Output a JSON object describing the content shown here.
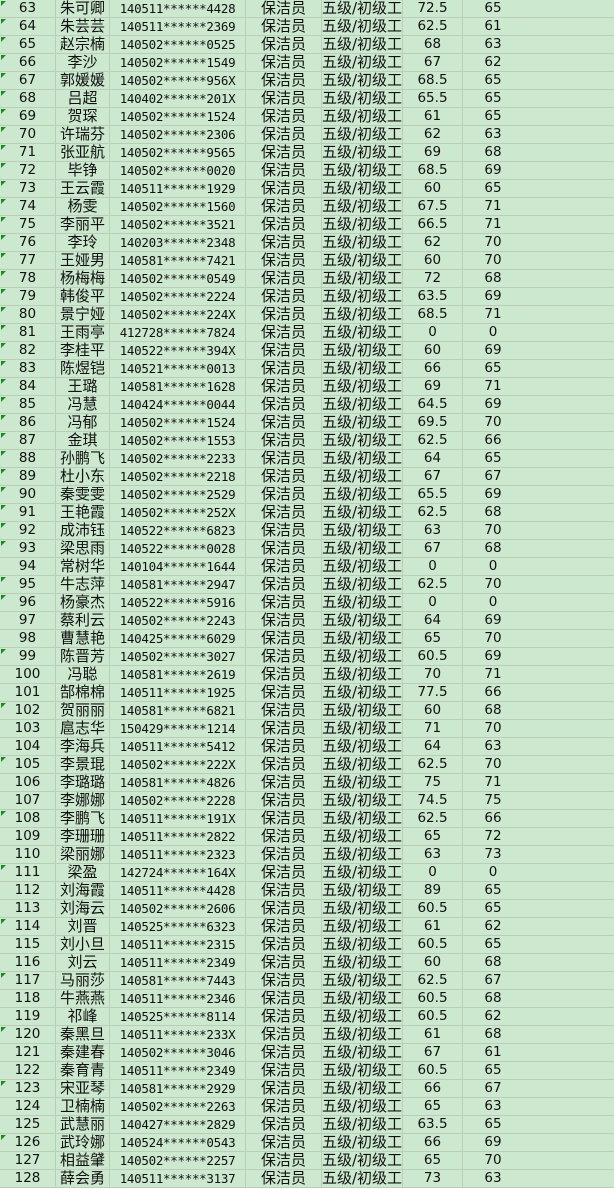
{
  "colors": {
    "background": "#cce8cf",
    "gridline": "#b9cdb9",
    "error_flag": "#1f8a1f"
  },
  "rows": [
    {
      "no": "63",
      "name": "朱可卿",
      "id": "140511******4428",
      "job": "保洁员",
      "level": "五级/初级工",
      "s1": "72.5",
      "s2": "65",
      "flag": true
    },
    {
      "no": "64",
      "name": "朱芸芸",
      "id": "140511******2369",
      "job": "保洁员",
      "level": "五级/初级工",
      "s1": "62.5",
      "s2": "61",
      "flag": true
    },
    {
      "no": "65",
      "name": "赵宗楠",
      "id": "140502******0525",
      "job": "保洁员",
      "level": "五级/初级工",
      "s1": "68",
      "s2": "63",
      "flag": true
    },
    {
      "no": "66",
      "name": "李沙",
      "id": "140502******1549",
      "job": "保洁员",
      "level": "五级/初级工",
      "s1": "67",
      "s2": "62",
      "flag": true
    },
    {
      "no": "67",
      "name": "郭媛媛",
      "id": "140502******956X",
      "job": "保洁员",
      "level": "五级/初级工",
      "s1": "68.5",
      "s2": "65",
      "flag": true
    },
    {
      "no": "68",
      "name": "吕超",
      "id": "140402******201X",
      "job": "保洁员",
      "level": "五级/初级工",
      "s1": "65.5",
      "s2": "65",
      "flag": true
    },
    {
      "no": "69",
      "name": "贺琛",
      "id": "140502******1524",
      "job": "保洁员",
      "level": "五级/初级工",
      "s1": "61",
      "s2": "65",
      "flag": true
    },
    {
      "no": "70",
      "name": "许瑞芬",
      "id": "140502******2306",
      "job": "保洁员",
      "level": "五级/初级工",
      "s1": "62",
      "s2": "63",
      "flag": true
    },
    {
      "no": "71",
      "name": "张亚航",
      "id": "140502******9565",
      "job": "保洁员",
      "level": "五级/初级工",
      "s1": "69",
      "s2": "68",
      "flag": true
    },
    {
      "no": "72",
      "name": "毕铮",
      "id": "140502******0020",
      "job": "保洁员",
      "level": "五级/初级工",
      "s1": "68.5",
      "s2": "69",
      "flag": true
    },
    {
      "no": "73",
      "name": "王云霞",
      "id": "140511******1929",
      "job": "保洁员",
      "level": "五级/初级工",
      "s1": "60",
      "s2": "65",
      "flag": true
    },
    {
      "no": "74",
      "name": "杨雯",
      "id": "140502******1560",
      "job": "保洁员",
      "level": "五级/初级工",
      "s1": "67.5",
      "s2": "71",
      "flag": true
    },
    {
      "no": "75",
      "name": "李丽平",
      "id": "140502******3521",
      "job": "保洁员",
      "level": "五级/初级工",
      "s1": "66.5",
      "s2": "71",
      "flag": true
    },
    {
      "no": "76",
      "name": "李玲",
      "id": "140203******2348",
      "job": "保洁员",
      "level": "五级/初级工",
      "s1": "62",
      "s2": "70",
      "flag": true
    },
    {
      "no": "77",
      "name": "王娅男",
      "id": "140581******7421",
      "job": "保洁员",
      "level": "五级/初级工",
      "s1": "60",
      "s2": "70",
      "flag": true
    },
    {
      "no": "78",
      "name": "杨梅梅",
      "id": "140502******0549",
      "job": "保洁员",
      "level": "五级/初级工",
      "s1": "72",
      "s2": "68",
      "flag": true
    },
    {
      "no": "79",
      "name": "韩俊平",
      "id": "140502******2224",
      "job": "保洁员",
      "level": "五级/初级工",
      "s1": "63.5",
      "s2": "69",
      "flag": true
    },
    {
      "no": "80",
      "name": "景宁娅",
      "id": "140502******224X",
      "job": "保洁员",
      "level": "五级/初级工",
      "s1": "68.5",
      "s2": "71",
      "flag": true
    },
    {
      "no": "81",
      "name": "王雨亭",
      "id": "412728******7824",
      "job": "保洁员",
      "level": "五级/初级工",
      "s1": "0",
      "s2": "0",
      "flag": true
    },
    {
      "no": "82",
      "name": "李桂平",
      "id": "140522******394X",
      "job": "保洁员",
      "level": "五级/初级工",
      "s1": "60",
      "s2": "69",
      "flag": true
    },
    {
      "no": "83",
      "name": "陈煜铠",
      "id": "140521******0013",
      "job": "保洁员",
      "level": "五级/初级工",
      "s1": "66",
      "s2": "65",
      "flag": true
    },
    {
      "no": "84",
      "name": "王璐",
      "id": "140581******1628",
      "job": "保洁员",
      "level": "五级/初级工",
      "s1": "69",
      "s2": "71",
      "flag": true
    },
    {
      "no": "85",
      "name": "冯慧",
      "id": "140424******0044",
      "job": "保洁员",
      "level": "五级/初级工",
      "s1": "64.5",
      "s2": "69",
      "flag": true
    },
    {
      "no": "86",
      "name": "冯郁",
      "id": "140502******1524",
      "job": "保洁员",
      "level": "五级/初级工",
      "s1": "69.5",
      "s2": "70",
      "flag": true
    },
    {
      "no": "87",
      "name": "金琪",
      "id": "140502******1553",
      "job": "保洁员",
      "level": "五级/初级工",
      "s1": "62.5",
      "s2": "66",
      "flag": true
    },
    {
      "no": "88",
      "name": "孙鹏飞",
      "id": "140502******2233",
      "job": "保洁员",
      "level": "五级/初级工",
      "s1": "64",
      "s2": "65",
      "flag": true
    },
    {
      "no": "89",
      "name": "杜小东",
      "id": "140502******2218",
      "job": "保洁员",
      "level": "五级/初级工",
      "s1": "67",
      "s2": "67",
      "flag": true
    },
    {
      "no": "90",
      "name": "秦雯雯",
      "id": "140502******2529",
      "job": "保洁员",
      "level": "五级/初级工",
      "s1": "65.5",
      "s2": "69",
      "flag": true
    },
    {
      "no": "91",
      "name": "王艳霞",
      "id": "140502******252X",
      "job": "保洁员",
      "level": "五级/初级工",
      "s1": "62.5",
      "s2": "68",
      "flag": true
    },
    {
      "no": "92",
      "name": "成沛钰",
      "id": "140522******6823",
      "job": "保洁员",
      "level": "五级/初级工",
      "s1": "63",
      "s2": "70",
      "flag": true
    },
    {
      "no": "93",
      "name": "梁思雨",
      "id": "140522******0028",
      "job": "保洁员",
      "level": "五级/初级工",
      "s1": "67",
      "s2": "68",
      "flag": true
    },
    {
      "no": "94",
      "name": "常树华",
      "id": "140104******1644",
      "job": "保洁员",
      "level": "五级/初级工",
      "s1": "0",
      "s2": "0",
      "flag": false
    },
    {
      "no": "95",
      "name": "牛志萍",
      "id": "140581******2947",
      "job": "保洁员",
      "level": "五级/初级工",
      "s1": "62.5",
      "s2": "70",
      "flag": true
    },
    {
      "no": "96",
      "name": "杨豪杰",
      "id": "140522******5916",
      "job": "保洁员",
      "level": "五级/初级工",
      "s1": "0",
      "s2": "0",
      "flag": true
    },
    {
      "no": "97",
      "name": "蔡利云",
      "id": "140502******2243",
      "job": "保洁员",
      "level": "五级/初级工",
      "s1": "64",
      "s2": "69",
      "flag": false
    },
    {
      "no": "98",
      "name": "曹慧艳",
      "id": "140425******6029",
      "job": "保洁员",
      "level": "五级/初级工",
      "s1": "65",
      "s2": "70",
      "flag": false
    },
    {
      "no": "99",
      "name": "陈晋芳",
      "id": "140502******3027",
      "job": "保洁员",
      "level": "五级/初级工",
      "s1": "60.5",
      "s2": "69",
      "flag": true
    },
    {
      "no": "100",
      "name": "冯聪",
      "id": "140581******2619",
      "job": "保洁员",
      "level": "五级/初级工",
      "s1": "70",
      "s2": "71",
      "flag": false
    },
    {
      "no": "101",
      "name": "郜棉棉",
      "id": "140511******1925",
      "job": "保洁员",
      "level": "五级/初级工",
      "s1": "77.5",
      "s2": "66",
      "flag": false
    },
    {
      "no": "102",
      "name": "贺丽丽",
      "id": "140581******6821",
      "job": "保洁员",
      "level": "五级/初级工",
      "s1": "60",
      "s2": "68",
      "flag": true
    },
    {
      "no": "103",
      "name": "扈志华",
      "id": "150429******1214",
      "job": "保洁员",
      "level": "五级/初级工",
      "s1": "71",
      "s2": "70",
      "flag": false
    },
    {
      "no": "104",
      "name": "李海兵",
      "id": "140511******5412",
      "job": "保洁员",
      "level": "五级/初级工",
      "s1": "64",
      "s2": "63",
      "flag": false
    },
    {
      "no": "105",
      "name": "李景琨",
      "id": "140502******222X",
      "job": "保洁员",
      "level": "五级/初级工",
      "s1": "62.5",
      "s2": "70",
      "flag": true
    },
    {
      "no": "106",
      "name": "李璐璐",
      "id": "140581******4826",
      "job": "保洁员",
      "level": "五级/初级工",
      "s1": "75",
      "s2": "71",
      "flag": false
    },
    {
      "no": "107",
      "name": "李娜娜",
      "id": "140502******2228",
      "job": "保洁员",
      "level": "五级/初级工",
      "s1": "74.5",
      "s2": "75",
      "flag": false
    },
    {
      "no": "108",
      "name": "李鹏飞",
      "id": "140511******191X",
      "job": "保洁员",
      "level": "五级/初级工",
      "s1": "62.5",
      "s2": "66",
      "flag": true
    },
    {
      "no": "109",
      "name": "李珊珊",
      "id": "140511******2822",
      "job": "保洁员",
      "level": "五级/初级工",
      "s1": "65",
      "s2": "72",
      "flag": false
    },
    {
      "no": "110",
      "name": "梁丽娜",
      "id": "140511******2323",
      "job": "保洁员",
      "level": "五级/初级工",
      "s1": "63",
      "s2": "73",
      "flag": false
    },
    {
      "no": "111",
      "name": "梁盈",
      "id": "142724******164X",
      "job": "保洁员",
      "level": "五级/初级工",
      "s1": "0",
      "s2": "0",
      "flag": true
    },
    {
      "no": "112",
      "name": "刘海霞",
      "id": "140511******4428",
      "job": "保洁员",
      "level": "五级/初级工",
      "s1": "89",
      "s2": "65",
      "flag": false
    },
    {
      "no": "113",
      "name": "刘海云",
      "id": "140502******2606",
      "job": "保洁员",
      "level": "五级/初级工",
      "s1": "60.5",
      "s2": "65",
      "flag": false
    },
    {
      "no": "114",
      "name": "刘晋",
      "id": "140525******6323",
      "job": "保洁员",
      "level": "五级/初级工",
      "s1": "61",
      "s2": "62",
      "flag": true
    },
    {
      "no": "115",
      "name": "刘小旦",
      "id": "140511******2315",
      "job": "保洁员",
      "level": "五级/初级工",
      "s1": "60.5",
      "s2": "65",
      "flag": false
    },
    {
      "no": "116",
      "name": "刘云",
      "id": "140511******2349",
      "job": "保洁员",
      "level": "五级/初级工",
      "s1": "60",
      "s2": "68",
      "flag": false
    },
    {
      "no": "117",
      "name": "马丽莎",
      "id": "140581******7443",
      "job": "保洁员",
      "level": "五级/初级工",
      "s1": "62.5",
      "s2": "67",
      "flag": true
    },
    {
      "no": "118",
      "name": "牛燕燕",
      "id": "140511******2346",
      "job": "保洁员",
      "level": "五级/初级工",
      "s1": "60.5",
      "s2": "68",
      "flag": false
    },
    {
      "no": "119",
      "name": "祁峰",
      "id": "140525******8114",
      "job": "保洁员",
      "level": "五级/初级工",
      "s1": "60.5",
      "s2": "62",
      "flag": false
    },
    {
      "no": "120",
      "name": "秦黑旦",
      "id": "140511******233X",
      "job": "保洁员",
      "level": "五级/初级工",
      "s1": "61",
      "s2": "68",
      "flag": true
    },
    {
      "no": "121",
      "name": "秦建春",
      "id": "140502******3046",
      "job": "保洁员",
      "level": "五级/初级工",
      "s1": "67",
      "s2": "61",
      "flag": false
    },
    {
      "no": "122",
      "name": "秦育青",
      "id": "140511******2349",
      "job": "保洁员",
      "level": "五级/初级工",
      "s1": "60.5",
      "s2": "65",
      "flag": false
    },
    {
      "no": "123",
      "name": "宋亚琴",
      "id": "140581******2929",
      "job": "保洁员",
      "level": "五级/初级工",
      "s1": "66",
      "s2": "67",
      "flag": true
    },
    {
      "no": "124",
      "name": "卫楠楠",
      "id": "140502******2263",
      "job": "保洁员",
      "level": "五级/初级工",
      "s1": "65",
      "s2": "63",
      "flag": false
    },
    {
      "no": "125",
      "name": "武慧丽",
      "id": "140427******2829",
      "job": "保洁员",
      "level": "五级/初级工",
      "s1": "63.5",
      "s2": "65",
      "flag": false
    },
    {
      "no": "126",
      "name": "武玲娜",
      "id": "140524******0543",
      "job": "保洁员",
      "level": "五级/初级工",
      "s1": "66",
      "s2": "69",
      "flag": true
    },
    {
      "no": "127",
      "name": "相益肈",
      "id": "140502******2257",
      "job": "保洁员",
      "level": "五级/初级工",
      "s1": "65",
      "s2": "70",
      "flag": false
    },
    {
      "no": "128",
      "name": "薛会勇",
      "id": "140511******3137",
      "job": "保洁员",
      "level": "五级/初级工",
      "s1": "73",
      "s2": "63",
      "flag": false
    }
  ]
}
